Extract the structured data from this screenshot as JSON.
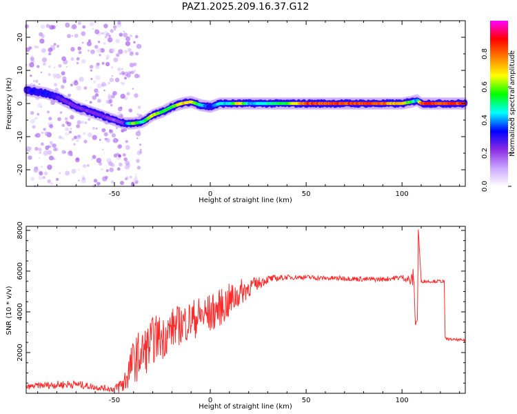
{
  "chart_data": [
    {
      "type": "heatmap",
      "title": "PAZ1.2025.209.16.37.G12",
      "xlabel": "Height of straight line (km)",
      "ylabel": "Frequency (Hz)",
      "xlim": [
        -96,
        133
      ],
      "ylim": [
        -25,
        25
      ],
      "x_ticks": [
        -50,
        0,
        50,
        100
      ],
      "y_ticks": [
        -20,
        -10,
        0,
        10,
        20
      ],
      "colorbar": {
        "label": "Normalized spectral amplitude",
        "range": [
          0,
          1
        ],
        "ticks": [
          "0.0",
          "0.2",
          "0.4",
          "0.6",
          "0.8"
        ],
        "colors": [
          "#ffffff",
          "#c9a6ff",
          "#8a2be2",
          "#0000ff",
          "#00ffff",
          "#00ff00",
          "#ffff00",
          "#ff8000",
          "#ff0000",
          "#ff00ff"
        ]
      },
      "ridge_x": [
        -96,
        -90,
        -85,
        -80,
        -75,
        -70,
        -65,
        -60,
        -55,
        -50,
        -45,
        -40,
        -35,
        -30,
        -25,
        -20,
        -15,
        -10,
        -5,
        0,
        5,
        10,
        15,
        20,
        30,
        40,
        50,
        60,
        70,
        80,
        90,
        100,
        105,
        108,
        110,
        120,
        133
      ],
      "ridge_freq": [
        4,
        3.5,
        3,
        2,
        0.5,
        -1,
        -2,
        -3,
        -4,
        -5,
        -6,
        -6,
        -5.5,
        -3.5,
        -2.5,
        -1,
        0,
        0.5,
        -0.5,
        -1,
        0,
        0,
        0,
        0,
        0,
        0,
        0,
        0,
        0,
        0,
        0,
        0,
        0.5,
        1,
        0,
        0,
        0
      ],
      "ridge_amp": [
        0.3,
        0.35,
        0.35,
        0.3,
        0.25,
        0.25,
        0.25,
        0.25,
        0.25,
        0.2,
        0.25,
        0.7,
        0.5,
        0.7,
        0.6,
        0.6,
        0.75,
        0.75,
        0.5,
        0.35,
        0.5,
        0.45,
        0.8,
        0.45,
        0.5,
        0.6,
        0.9,
        0.9,
        0.9,
        0.9,
        0.85,
        0.75,
        0.6,
        0.4,
        0.9,
        0.9,
        0.9
      ]
    },
    {
      "type": "line",
      "xlabel": "Height of straight line (km)",
      "ylabel": "SNR (10 * v/v)",
      "xlim": [
        -96,
        133
      ],
      "ylim": [
        0,
        8200
      ],
      "x_ticks": [
        -50,
        0,
        50,
        100
      ],
      "y_ticks": [
        2000,
        4000,
        6000,
        8000
      ],
      "series_color": "#ff2a2a",
      "x": [
        -96,
        -90,
        -80,
        -70,
        -60,
        -50,
        -45,
        -42,
        -40,
        -38,
        -35,
        -32,
        -30,
        -27,
        -25,
        -22,
        -20,
        -15,
        -10,
        -5,
        0,
        5,
        10,
        15,
        20,
        25,
        30,
        40,
        50,
        60,
        70,
        80,
        90,
        95,
        100,
        103,
        105,
        106,
        107,
        108,
        108.5,
        110,
        115,
        120,
        122,
        122.5,
        125,
        133
      ],
      "values": [
        300,
        380,
        420,
        450,
        300,
        200,
        500,
        1200,
        1600,
        1800,
        2000,
        2300,
        2600,
        2800,
        2700,
        3000,
        3200,
        3400,
        3600,
        3800,
        3900,
        4200,
        4500,
        4900,
        5200,
        5400,
        5600,
        5700,
        5700,
        5650,
        5650,
        5600,
        5600,
        5650,
        5700,
        5600,
        5500,
        5800,
        3400,
        3600,
        8100,
        5500,
        5500,
        5500,
        5500,
        2700,
        2650,
        2600
      ],
      "noise_amp": [
        120,
        150,
        200,
        200,
        150,
        150,
        600,
        900,
        1100,
        1200,
        1200,
        1200,
        1200,
        1100,
        1100,
        1000,
        1000,
        1000,
        1000,
        1000,
        1000,
        900,
        900,
        700,
        500,
        300,
        200,
        120,
        120,
        120,
        120,
        120,
        120,
        120,
        120,
        200,
        400,
        400,
        100,
        100,
        100,
        80,
        80,
        80,
        80,
        60,
        60,
        60
      ]
    }
  ]
}
